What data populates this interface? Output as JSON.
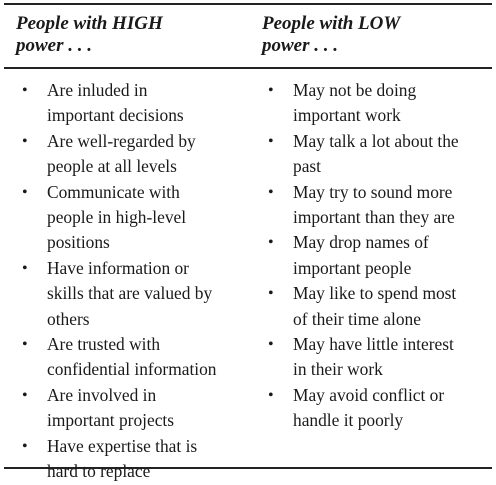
{
  "table": {
    "header": {
      "left": [
        "People with HIGH",
        "power . . ."
      ],
      "right": [
        "People with LOW",
        "power . . ."
      ]
    },
    "left_items": [
      [
        "Are inluded in",
        "important decisions"
      ],
      [
        "Are well-regarded by",
        "people at all levels"
      ],
      [
        "Communicate with",
        "people in high-level",
        "positions"
      ],
      [
        "Have information or",
        "skills that are valued by",
        "others"
      ],
      [
        "Are trusted with",
        "confidential information"
      ],
      [
        "Are involved in",
        "important projects"
      ],
      [
        "Have expertise that is",
        "hard to replace"
      ]
    ],
    "right_items": [
      [
        "May not be doing",
        "important work"
      ],
      [
        "May talk a lot about the",
        "past"
      ],
      [
        "May try to sound more",
        "important than they are"
      ],
      [
        "May drop names of",
        "important people"
      ],
      [
        "May like to spend most",
        "of their time alone"
      ],
      [
        "May have little interest",
        "in their work"
      ],
      [
        "May avoid conflict or",
        "handle it poorly"
      ]
    ],
    "bullet_char": "•"
  }
}
